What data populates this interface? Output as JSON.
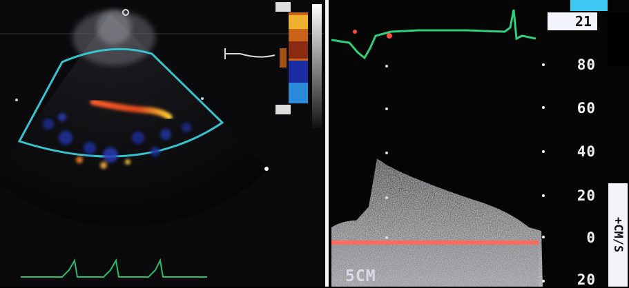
{
  "frame_counter": "21",
  "velocity_scale": {
    "ticks": [
      "80",
      "60",
      "40",
      "20",
      "0",
      "20"
    ],
    "unit_label": "+CM/S"
  },
  "depth_label": "5CM",
  "colors": {
    "sector_outline": "#38c4cf",
    "ecg_trace": "#2fd07a",
    "baseline": "#ff6a5a",
    "accent": "#3cc8f2",
    "divider": "#f4f4f6"
  },
  "icons": [
    "probe-orientation-dot-icon",
    "sample-gate-icon"
  ]
}
